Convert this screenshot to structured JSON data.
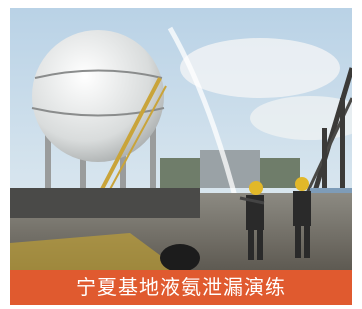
{
  "caption": "宁夏基地液氨泄漏演练"
}
